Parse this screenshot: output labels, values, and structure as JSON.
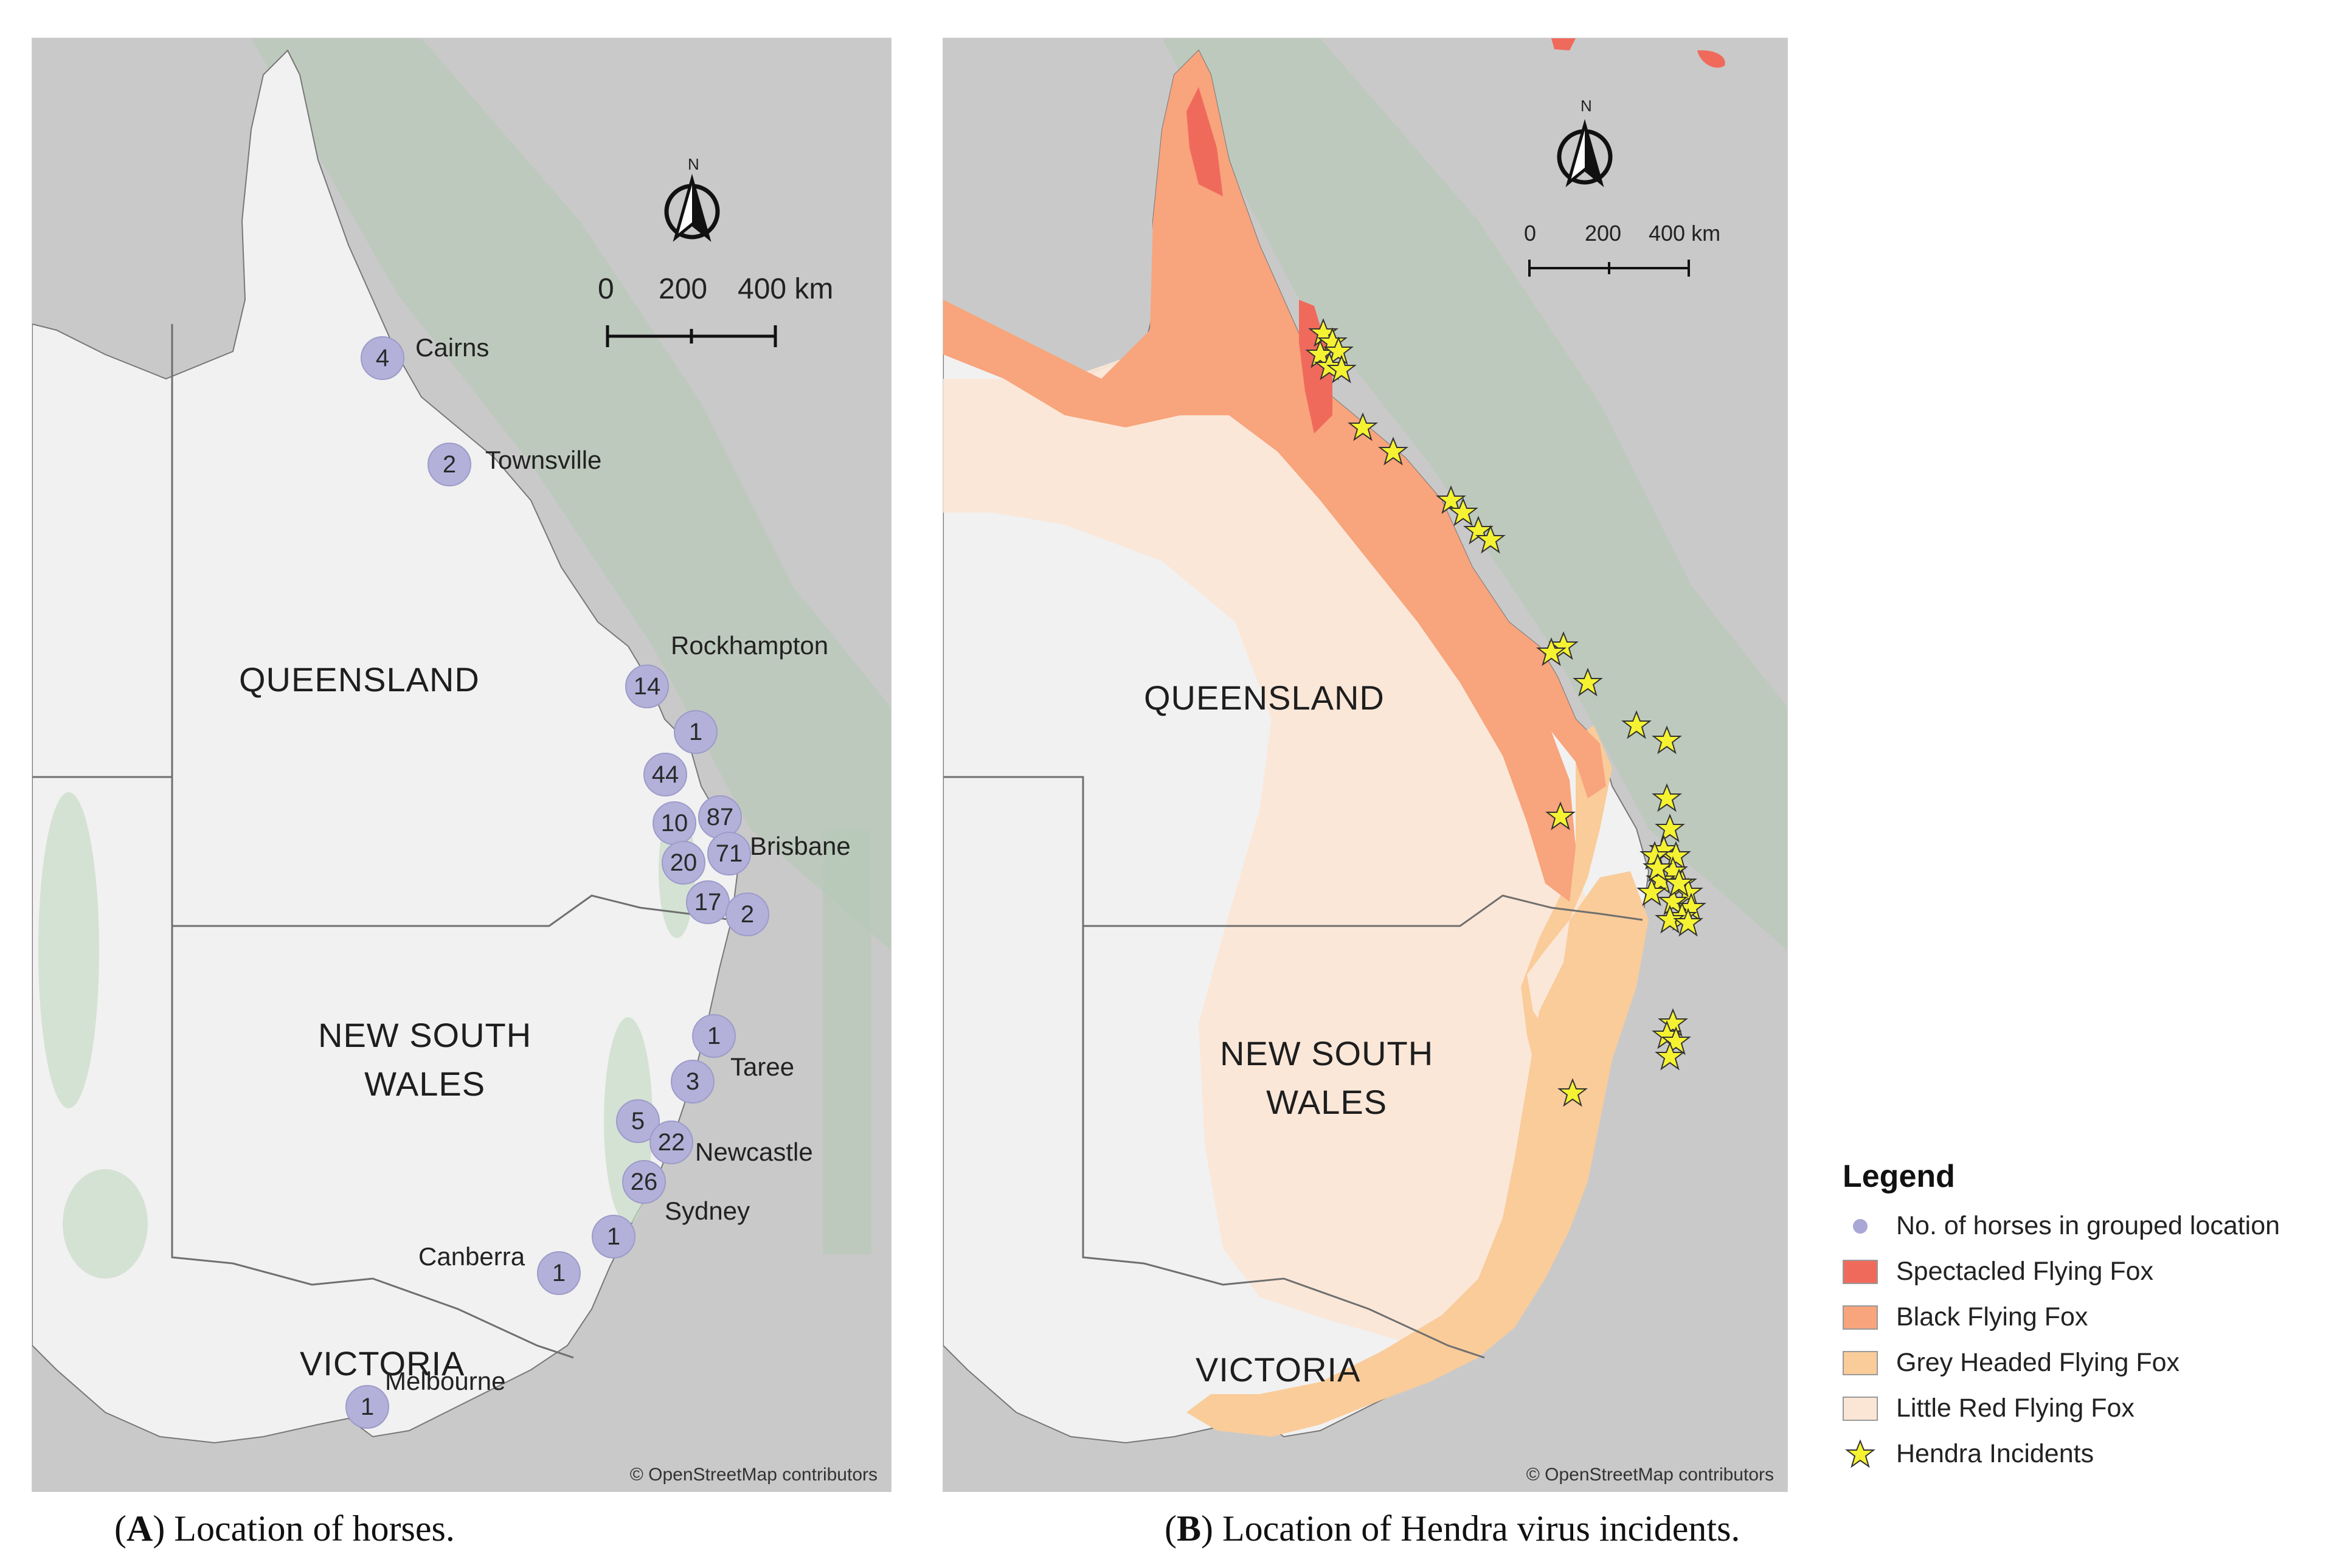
{
  "panel_a": {
    "states": [
      "QUEENSLAND",
      "NEW SOUTH\nWALES",
      "VICTORIA"
    ],
    "cities": [
      "Cairns",
      "Townsville",
      "Rockhampton",
      "Brisbane",
      "Taree",
      "Newcastle",
      "Sydney",
      "Canberra",
      "Melbourne"
    ],
    "horse_counts": [
      "4",
      "2",
      "14",
      "1",
      "44",
      "10",
      "87",
      "71",
      "20",
      "17",
      "2",
      "1",
      "3",
      "5",
      "22",
      "26",
      "1",
      "1",
      "1"
    ],
    "scale": [
      "0",
      "200",
      "400 km"
    ],
    "north": "N",
    "attribution": "© OpenStreetMap contributors",
    "caption_letter": "A",
    "caption_text": ") Location of horses."
  },
  "panel_b": {
    "states": [
      "QUEENSLAND",
      "NEW SOUTH\nWALES",
      "VICTORIA"
    ],
    "scale": [
      "0",
      "200",
      "400 km"
    ],
    "north": "N",
    "attribution": "© OpenStreetMap contributors",
    "caption_letter": "B",
    "caption_text": ") Location of Hendra virus incidents.",
    "hendra_incident_count": 40
  },
  "legend": {
    "title": "Legend",
    "items": [
      {
        "label": "No. of horses in grouped location",
        "symbol": "circle",
        "color": "#a9a7d6"
      },
      {
        "label": "Spectacled Flying Fox",
        "symbol": "swatch",
        "color": "#f06a5c"
      },
      {
        "label": "Black Flying Fox",
        "symbol": "swatch",
        "color": "#f8a47c"
      },
      {
        "label": "Grey Headed Flying Fox",
        "symbol": "swatch",
        "color": "#f9cc9a"
      },
      {
        "label": "Little Red Flying Fox",
        "symbol": "swatch",
        "color": "#fbe6d6"
      },
      {
        "label": "Hendra Incidents",
        "symbol": "star",
        "color": "#f5f232"
      }
    ]
  },
  "colors": {
    "sea": "#c9c9c9",
    "land": "#f1f1f1",
    "green_area": "#b9cfb9",
    "horse_marker": "#b3b1da",
    "star": "#f5f232"
  }
}
